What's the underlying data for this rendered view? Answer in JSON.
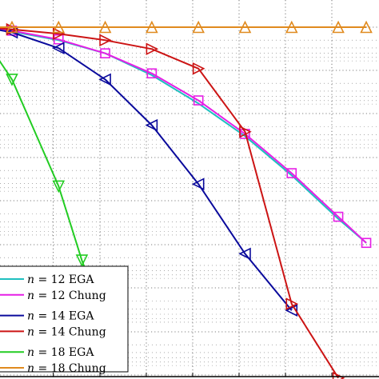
{
  "chart_data": {
    "type": "line",
    "title": "",
    "xlabel": "",
    "ylabel": "",
    "xlim": [
      0,
      8.2
    ],
    "ylim": [
      -8,
      0
    ],
    "grid": true,
    "legend_position": "bottom-left",
    "series": [
      {
        "name": "n = 12 EGA",
        "var": "n",
        "label": "12 EGA",
        "color": "#1fbfbf",
        "marker": "none",
        "x": [
          0,
          0.6,
          1.6,
          2.6,
          3.6,
          4.6,
          5.6,
          6.6,
          7.6,
          8.2
        ],
        "y": [
          0,
          -0.1,
          -0.3,
          -0.6,
          -1.1,
          -1.75,
          -2.5,
          -3.4,
          -4.4,
          -4.95
        ]
      },
      {
        "name": "n = 12 Chung",
        "var": "n",
        "label": "12 Chung",
        "color": "#e61ee6",
        "marker": "square",
        "x": [
          0,
          0.6,
          1.6,
          2.6,
          3.6,
          4.6,
          5.6,
          6.6,
          7.6,
          8.2
        ],
        "y": [
          0,
          -0.08,
          -0.28,
          -0.6,
          -1.06,
          -1.68,
          -2.45,
          -3.35,
          -4.35,
          -4.95
        ]
      },
      {
        "name": "n = 14 EGA",
        "var": "n",
        "label": "14 EGA",
        "color": "#0a0a9c",
        "marker": "triangle-left",
        "x": [
          0,
          0.6,
          1.6,
          2.6,
          3.6,
          4.6,
          5.6,
          6.6
        ],
        "y": [
          0,
          -0.12,
          -0.48,
          -1.2,
          -2.25,
          -3.6,
          -5.2,
          -6.5
        ]
      },
      {
        "name": "n = 14 Chung",
        "var": "n",
        "label": "14 Chung",
        "color": "#cc1414",
        "marker": "triangle-right",
        "x": [
          0,
          0.6,
          1.6,
          2.6,
          3.6,
          4.6,
          5.6,
          6.6,
          7.6
        ],
        "y": [
          0,
          -0.05,
          -0.15,
          -0.3,
          -0.5,
          -0.95,
          -2.4,
          -6.35,
          -8.05
        ]
      },
      {
        "name": "n = 18 EGA",
        "var": "n",
        "label": "18 EGA",
        "color": "#22cc22",
        "marker": "triangle-down",
        "x": [
          0,
          0.1,
          0.6,
          1.6,
          2.1,
          2.6
        ],
        "y": [
          -0.2,
          -0.4,
          -1.2,
          -3.65,
          -5.35,
          -6.8
        ]
      },
      {
        "name": "n = 18 Chung",
        "var": "n",
        "label": "18 Chung",
        "color": "#e08a1e",
        "marker": "triangle-up",
        "x": [
          0,
          0.6,
          1.6,
          2.6,
          3.6,
          4.6,
          5.6,
          6.6,
          7.6,
          8.2
        ],
        "y": [
          0,
          0,
          0,
          0,
          0,
          0,
          0,
          0,
          0,
          0
        ]
      }
    ]
  }
}
